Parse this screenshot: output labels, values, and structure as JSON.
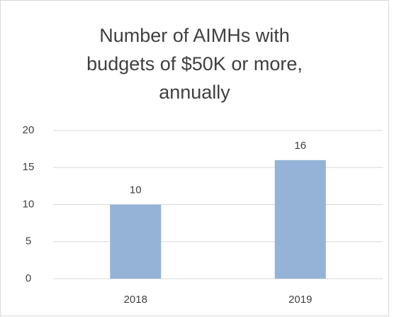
{
  "chart_data": {
    "type": "bar",
    "title": "Number of AIMHs with budgets of $50K or more, annually",
    "categories": [
      "2018",
      "2019"
    ],
    "values": [
      10,
      16
    ],
    "color": "#95b3d7",
    "ylim": [
      0,
      20
    ],
    "yticks": [
      0,
      5,
      10,
      15,
      20
    ],
    "grid": true
  }
}
